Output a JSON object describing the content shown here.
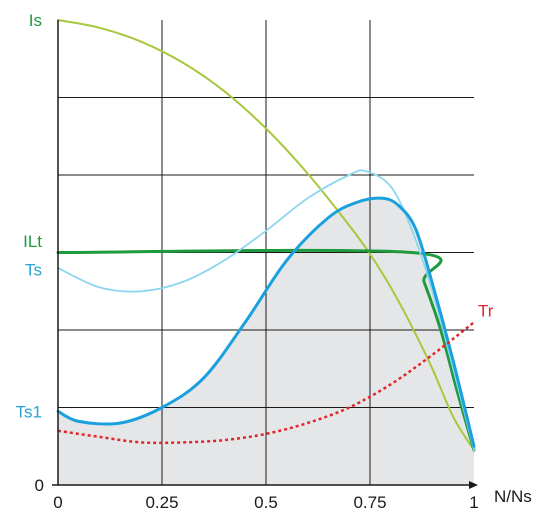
{
  "chart_data": {
    "type": "line",
    "xlabel": "N/Ns",
    "xlim": [
      0,
      1
    ],
    "ylim": [
      0,
      6
    ],
    "grid": true,
    "x_ticks": [
      {
        "value": 0,
        "label": "0"
      },
      {
        "value": 0.25,
        "label": "0.25"
      },
      {
        "value": 0.5,
        "label": "0.5"
      },
      {
        "value": 0.75,
        "label": "0.75"
      },
      {
        "value": 1,
        "label": "1"
      }
    ],
    "y_ticks": [
      {
        "value": 0,
        "label": "0"
      }
    ],
    "y_labels": [
      {
        "text": "Is",
        "value": 6.0,
        "color": "#1f9a3e"
      },
      {
        "text": "ILt",
        "value": 3.15,
        "color": "#1f9a3e"
      },
      {
        "text": "Ts",
        "value": 2.78,
        "color": "#29a3d6"
      },
      {
        "text": "Ts1",
        "value": 0.95,
        "color": "#29a3d6"
      }
    ],
    "series": [
      {
        "name": "Is",
        "color": "#a6c83c",
        "style": "solid",
        "x": [
          0,
          0.1,
          0.2,
          0.3,
          0.4,
          0.5,
          0.6,
          0.7,
          0.75,
          0.8,
          0.85,
          0.9,
          0.95,
          1.0
        ],
        "y": [
          6.0,
          5.9,
          5.72,
          5.45,
          5.08,
          4.6,
          4.02,
          3.35,
          2.98,
          2.55,
          2.05,
          1.5,
          0.88,
          0.45
        ]
      },
      {
        "name": "ILt",
        "color": "#1f9a3e",
        "style": "solid",
        "x": [
          0,
          0.85,
          0.88,
          0.92,
          0.96,
          1.0
        ],
        "y": [
          3.0,
          3.0,
          2.62,
          2.0,
          1.2,
          0.45
        ]
      },
      {
        "name": "Ts",
        "color": "#8ed6ee",
        "style": "solid",
        "x": [
          0,
          0.1,
          0.2,
          0.3,
          0.4,
          0.5,
          0.6,
          0.7,
          0.74,
          0.8,
          0.85,
          0.9,
          0.95,
          1.0
        ],
        "y": [
          2.8,
          2.55,
          2.5,
          2.62,
          2.9,
          3.28,
          3.7,
          4.0,
          4.05,
          3.85,
          3.3,
          2.5,
          1.5,
          0.45
        ]
      },
      {
        "name": "Ts1",
        "color": "#1aa0dd",
        "style": "solid",
        "x": [
          0,
          0.05,
          0.15,
          0.25,
          0.35,
          0.45,
          0.55,
          0.65,
          0.72,
          0.78,
          0.82,
          0.86,
          0.9,
          0.95,
          1.0
        ],
        "y": [
          0.95,
          0.82,
          0.8,
          1.0,
          1.38,
          2.1,
          2.9,
          3.45,
          3.65,
          3.7,
          3.6,
          3.3,
          2.6,
          1.6,
          0.5
        ]
      },
      {
        "name": "Tr",
        "color": "#e0262c",
        "style": "dashed",
        "x": [
          0,
          0.1,
          0.2,
          0.3,
          0.4,
          0.5,
          0.6,
          0.7,
          0.8,
          0.9,
          1.0
        ],
        "y": [
          0.7,
          0.62,
          0.55,
          0.55,
          0.58,
          0.66,
          0.8,
          1.0,
          1.3,
          1.68,
          2.1
        ]
      }
    ],
    "annotations": [
      {
        "text": "Tr",
        "x": 1.0,
        "y": 2.15,
        "color": "#e0262c"
      }
    ],
    "shaded_area": {
      "series": "Ts1",
      "color": "#e5e6e8"
    }
  }
}
